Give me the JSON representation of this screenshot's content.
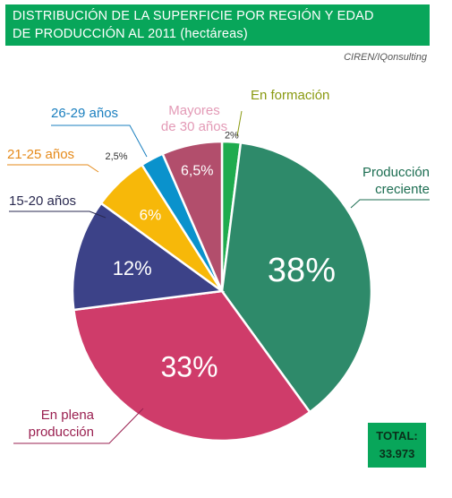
{
  "title_line1": "DISTRIBUCIÓN DE LA SUPERFICIE POR REGIÓN Y EDAD",
  "title_line2": "DE PRODUCCIÓN AL 2011 (hectáreas)",
  "source": "CIREN/IQonsulting",
  "total_label": "TOTAL:",
  "total_value": "33.973",
  "chart_data": {
    "type": "pie",
    "title": "DISTRIBUCIÓN DE LA SUPERFICIE POR REGIÓN Y EDAD DE PRODUCCIÓN AL 2011 (hectáreas)",
    "unit": "%",
    "start_angle_deg": 0,
    "direction": "clockwise",
    "slices": [
      {
        "key": "formacion",
        "label": [
          "En formación"
        ],
        "value": 2,
        "value_label": "2%",
        "color": "#1fab4e",
        "label_color": "#8a9a12"
      },
      {
        "key": "creciente",
        "label": [
          "Producción",
          "creciente"
        ],
        "value": 38,
        "value_label": "38%",
        "color": "#2e8a6a",
        "label_color": "#1d6e52"
      },
      {
        "key": "plena",
        "label": [
          "En plena",
          "producción"
        ],
        "value": 33,
        "value_label": "33%",
        "color": "#cf3c6a",
        "label_color": "#9a2050"
      },
      {
        "key": "15_20",
        "label": [
          "15-20 años"
        ],
        "value": 12,
        "value_label": "12%",
        "color": "#3c4288",
        "label_color": "#2a2a50"
      },
      {
        "key": "21_25",
        "label": [
          "21-25 años"
        ],
        "value": 6,
        "value_label": "6%",
        "color": "#f7b809",
        "label_color": "#e58a1a"
      },
      {
        "key": "26_29",
        "label": [
          "26-29 años"
        ],
        "value": 2.5,
        "value_label": "2,5%",
        "color": "#0a92cc",
        "label_color": "#1a7fbf"
      },
      {
        "key": "mayores30",
        "label": [
          "Mayores",
          "de 30 años"
        ],
        "value": 6.5,
        "value_label": "6,5%",
        "color": "#b24e6c",
        "label_color": "#e39ab6"
      }
    ]
  }
}
